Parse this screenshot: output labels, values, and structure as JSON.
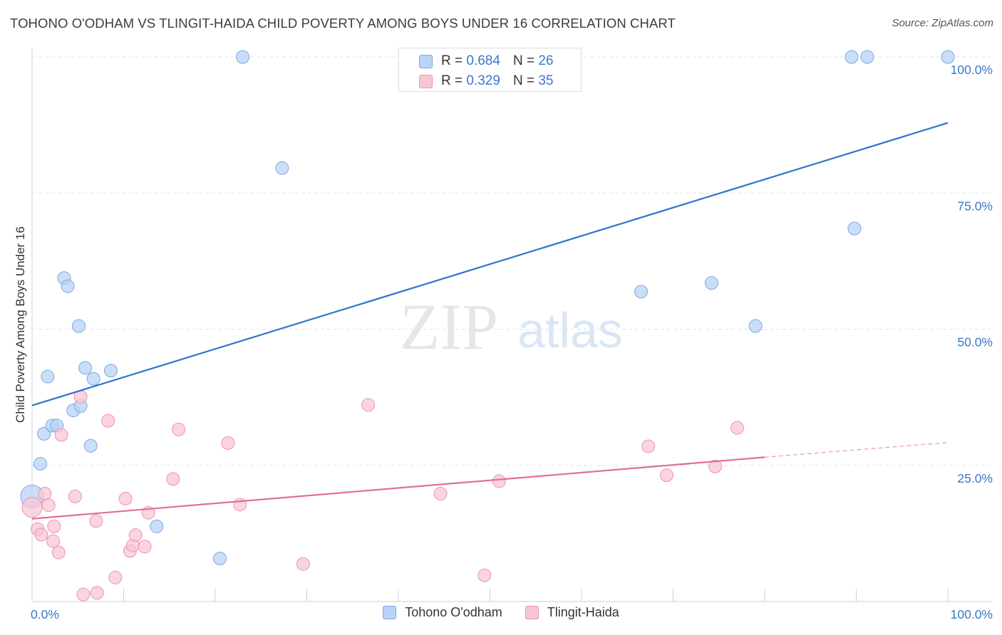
{
  "header": {
    "title": "TOHONO O'ODHAM VS TLINGIT-HAIDA CHILD POVERTY AMONG BOYS UNDER 16 CORRELATION CHART",
    "source": "Source: ZipAtlas.com"
  },
  "watermark": {
    "zip": "ZIP",
    "atlas": "atlas"
  },
  "colors": {
    "blue_fill": "#b8d3f5",
    "blue_stroke": "#7aa8e0",
    "blue_line": "#2e73cc",
    "pink_fill": "#f8c5d5",
    "pink_stroke": "#ec93b0",
    "pink_line": "#e0708f",
    "axis_text": "#3a78c9",
    "grid": "#e2e2e2"
  },
  "legend_top": [
    {
      "series": "Tohono O'odham",
      "r_label": "R =",
      "r_value": "0.684",
      "n_label": "N =",
      "n_value": "26"
    },
    {
      "series": "Tlingit-Haida",
      "r_label": "R =",
      "r_value": "0.329",
      "n_label": "N =",
      "n_value": "35"
    }
  ],
  "chart_data": {
    "type": "scatter",
    "title": "TOHONO O'ODHAM VS TLINGIT-HAIDA CHILD POVERTY AMONG BOYS UNDER 16 CORRELATION CHART",
    "xlabel": "",
    "ylabel": "Child Poverty Among Boys Under 16",
    "xlim": [
      0,
      100
    ],
    "ylim": [
      0,
      100
    ],
    "x_tick_labels": [
      "0.0%",
      "100.0%"
    ],
    "y_tick_labels": [
      "100.0%",
      "75.0%",
      "50.0%",
      "25.0%"
    ],
    "y_tick_values": [
      100,
      75,
      50,
      25
    ],
    "grid": true,
    "legend": "top-center and bottom",
    "series": [
      {
        "name": "Tohono O'odham",
        "color": "#b8d3f5",
        "r": 0.684,
        "n": 26,
        "trend": {
          "x0": 0,
          "y0": 36.0,
          "x1": 100,
          "y1": 87.9
        },
        "points": [
          [
            0.0,
            19.3,
            16
          ],
          [
            0.9,
            25.3,
            9
          ],
          [
            1.3,
            30.8,
            9
          ],
          [
            1.7,
            41.3,
            9
          ],
          [
            2.2,
            32.3,
            9
          ],
          [
            2.7,
            32.3,
            9
          ],
          [
            3.5,
            59.4,
            9
          ],
          [
            3.9,
            57.9,
            9
          ],
          [
            4.5,
            35.1,
            9
          ],
          [
            5.1,
            50.6,
            9
          ],
          [
            5.3,
            35.9,
            9
          ],
          [
            5.8,
            42.9,
            9
          ],
          [
            6.4,
            28.6,
            9
          ],
          [
            6.7,
            40.9,
            9
          ],
          [
            8.6,
            42.4,
            9
          ],
          [
            13.6,
            13.8,
            9
          ],
          [
            20.5,
            7.9,
            9
          ],
          [
            23.0,
            100.0,
            9
          ],
          [
            27.3,
            79.6,
            9
          ],
          [
            66.5,
            56.9,
            9
          ],
          [
            74.2,
            58.5,
            9
          ],
          [
            79.0,
            50.6,
            9
          ],
          [
            89.5,
            100.0,
            9
          ],
          [
            89.8,
            68.5,
            9
          ],
          [
            91.2,
            100.0,
            9
          ],
          [
            100.0,
            100.0,
            9
          ]
        ]
      },
      {
        "name": "Tlingit-Haida",
        "color": "#f8c5d5",
        "r": 0.329,
        "n": 35,
        "trend": {
          "x0": 0,
          "y0": 15.2,
          "x1": 80,
          "y1": 26.5,
          "dash_to_x": 100,
          "dash_to_y": 29.2
        },
        "points": [
          [
            0.0,
            17.3,
            14
          ],
          [
            0.6,
            13.3,
            9
          ],
          [
            1.0,
            12.3,
            9
          ],
          [
            1.4,
            19.8,
            9
          ],
          [
            1.8,
            17.7,
            9
          ],
          [
            2.3,
            11.1,
            9
          ],
          [
            2.4,
            13.8,
            9
          ],
          [
            2.9,
            9.0,
            9
          ],
          [
            3.2,
            30.6,
            9
          ],
          [
            4.7,
            19.3,
            9
          ],
          [
            5.3,
            37.6,
            9
          ],
          [
            5.6,
            1.3,
            9
          ],
          [
            7.0,
            14.8,
            9
          ],
          [
            7.1,
            1.6,
            9
          ],
          [
            8.3,
            33.2,
            9
          ],
          [
            9.1,
            4.4,
            9
          ],
          [
            10.2,
            18.9,
            9
          ],
          [
            10.7,
            9.3,
            9
          ],
          [
            11.0,
            10.3,
            9
          ],
          [
            11.3,
            12.2,
            9
          ],
          [
            12.3,
            10.1,
            9
          ],
          [
            12.7,
            16.3,
            9
          ],
          [
            15.4,
            22.5,
            9
          ],
          [
            16.0,
            31.6,
            9
          ],
          [
            21.4,
            29.1,
            9
          ],
          [
            22.7,
            17.8,
            9
          ],
          [
            29.6,
            6.9,
            9
          ],
          [
            36.7,
            36.1,
            9
          ],
          [
            44.6,
            19.8,
            9
          ],
          [
            49.4,
            4.8,
            9
          ],
          [
            51.0,
            22.1,
            9
          ],
          [
            67.3,
            28.5,
            9
          ],
          [
            69.3,
            23.2,
            9
          ],
          [
            74.6,
            24.8,
            9
          ],
          [
            77.0,
            31.9,
            9
          ]
        ]
      }
    ]
  },
  "legend_bottom": [
    {
      "label": "Tohono O'odham"
    },
    {
      "label": "Tlingit-Haida"
    }
  ]
}
